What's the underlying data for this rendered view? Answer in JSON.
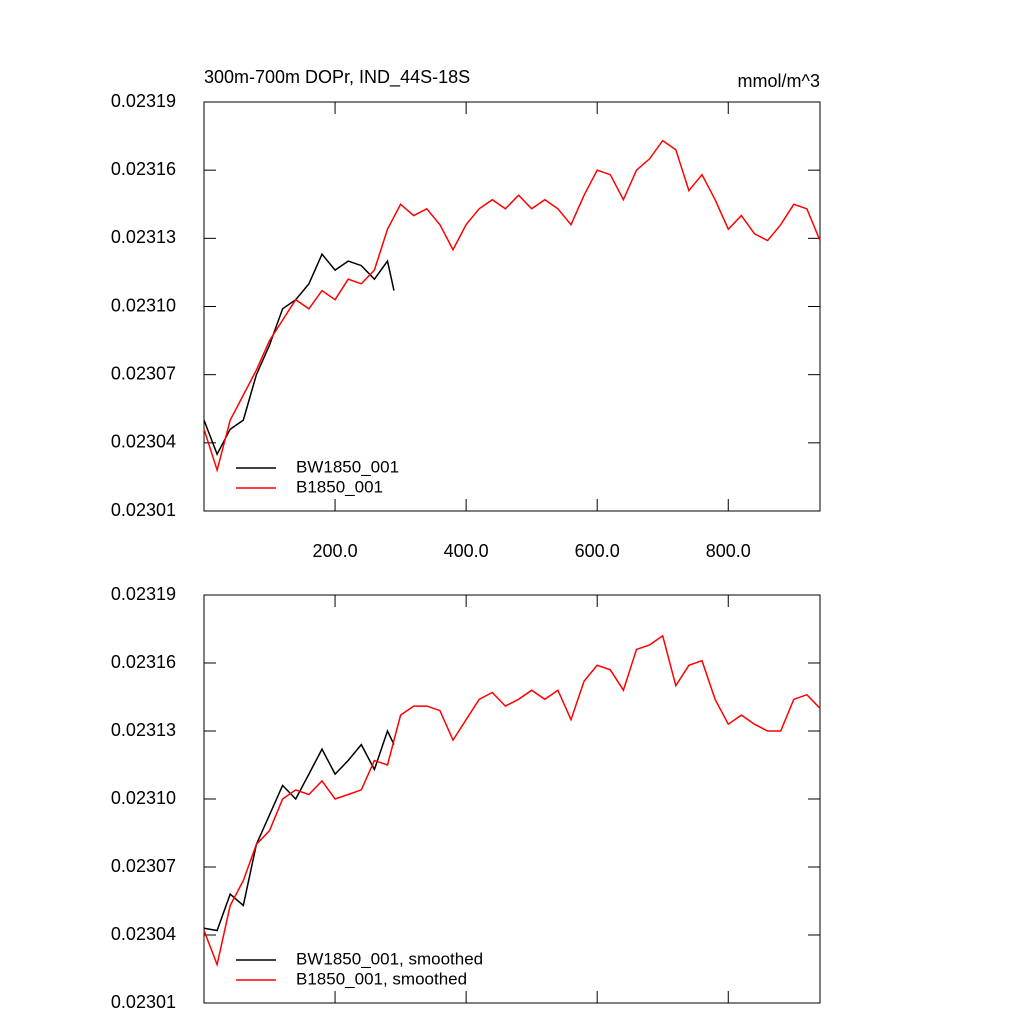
{
  "chart_data": [
    {
      "type": "line",
      "title": "300m-700m DOPr, IND_44S-18S",
      "units": "mmol/m^3",
      "x": [
        0,
        20,
        40,
        60,
        80,
        100,
        120,
        140,
        160,
        180,
        200,
        220,
        240,
        260,
        280,
        300,
        320,
        340,
        360,
        380,
        400,
        420,
        440,
        460,
        480,
        500,
        520,
        540,
        560,
        580,
        600,
        620,
        640,
        660,
        680,
        700,
        720,
        740,
        760,
        780,
        800,
        820,
        840,
        860,
        880,
        900,
        920,
        940
      ],
      "series": [
        {
          "name": "BW1850_001",
          "color": "#000000",
          "x": [
            0,
            20,
            40,
            60,
            80,
            100,
            120,
            140,
            160,
            180,
            200,
            220,
            240,
            260,
            280,
            290
          ],
          "values": [
            0.02305,
            0.023035,
            0.023046,
            0.02305,
            0.02307,
            0.023083,
            0.023099,
            0.023103,
            0.02311,
            0.023123,
            0.023116,
            0.02312,
            0.023118,
            0.023112,
            0.02312,
            0.023107
          ]
        },
        {
          "name": "B1850_001",
          "color": "#ff0000",
          "values": [
            0.023046,
            0.023028,
            0.02305,
            0.023061,
            0.023072,
            0.023085,
            0.023094,
            0.023103,
            0.023099,
            0.023107,
            0.023103,
            0.023112,
            0.02311,
            0.023116,
            0.023134,
            0.023145,
            0.02314,
            0.023143,
            0.023136,
            0.023125,
            0.023136,
            0.023143,
            0.023147,
            0.023143,
            0.023149,
            0.023143,
            0.023147,
            0.023143,
            0.023136,
            0.023149,
            0.02316,
            0.023158,
            0.023147,
            0.02316,
            0.023165,
            0.023173,
            0.023169,
            0.023151,
            0.023158,
            0.023147,
            0.023134,
            0.02314,
            0.023132,
            0.023129,
            0.023136,
            0.023145,
            0.023143,
            0.023129
          ]
        }
      ],
      "xlim": [
        0,
        940
      ],
      "xticks": [
        {
          "value": 200,
          "label": "200.0"
        },
        {
          "value": 400,
          "label": "400.0"
        },
        {
          "value": 600,
          "label": "600.0"
        },
        {
          "value": 800,
          "label": "800.0"
        }
      ],
      "ylim": [
        0.02301,
        0.02319
      ],
      "yticks": [
        0.02301,
        0.02304,
        0.02307,
        {
          "value": 0.0231,
          "label": "0.02310"
        },
        0.02313,
        0.02316,
        0.02319
      ],
      "legend": "lower left"
    },
    {
      "type": "line",
      "x": [
        0,
        20,
        40,
        60,
        80,
        100,
        120,
        140,
        160,
        180,
        200,
        220,
        240,
        260,
        280,
        300,
        320,
        340,
        360,
        380,
        400,
        420,
        440,
        460,
        480,
        500,
        520,
        540,
        560,
        580,
        600,
        620,
        640,
        660,
        680,
        700,
        720,
        740,
        760,
        780,
        800,
        820,
        840,
        860,
        880,
        900,
        920,
        940
      ],
      "series": [
        {
          "name": "BW1850_001, smoothed",
          "color": "#000000",
          "x": [
            0,
            20,
            40,
            60,
            80,
            100,
            120,
            140,
            160,
            180,
            200,
            220,
            240,
            260,
            280,
            290
          ],
          "values": [
            0.023043,
            0.023042,
            0.023058,
            0.023053,
            0.02308,
            0.023093,
            0.023106,
            0.0231,
            0.023111,
            0.023122,
            0.023111,
            0.023117,
            0.023124,
            0.023113,
            0.02313,
            0.023124
          ]
        },
        {
          "name": "B1850_001, smoothed",
          "color": "#ff0000",
          "values": [
            0.023042,
            0.023027,
            0.023053,
            0.023064,
            0.02308,
            0.023086,
            0.0231,
            0.023104,
            0.023102,
            0.023108,
            0.0231,
            0.023102,
            0.023104,
            0.023117,
            0.023115,
            0.023137,
            0.023141,
            0.023141,
            0.023139,
            0.023126,
            0.023135,
            0.023144,
            0.023147,
            0.023141,
            0.023144,
            0.023148,
            0.023144,
            0.023148,
            0.023135,
            0.023152,
            0.023159,
            0.023157,
            0.023148,
            0.023166,
            0.023168,
            0.023172,
            0.02315,
            0.023159,
            0.023161,
            0.023144,
            0.023133,
            0.023137,
            0.023133,
            0.02313,
            0.02313,
            0.023144,
            0.023146,
            0.02314
          ]
        }
      ],
      "xlim": [
        0,
        940
      ],
      "xticks": [
        200,
        400,
        600,
        800
      ],
      "ylim": [
        0.02301,
        0.02319
      ],
      "yticks": [
        0.02301,
        0.02304,
        0.02307,
        {
          "value": 0.0231,
          "label": "0.02310"
        },
        0.02313,
        0.02316,
        0.02319
      ],
      "legend": "lower left"
    }
  ]
}
